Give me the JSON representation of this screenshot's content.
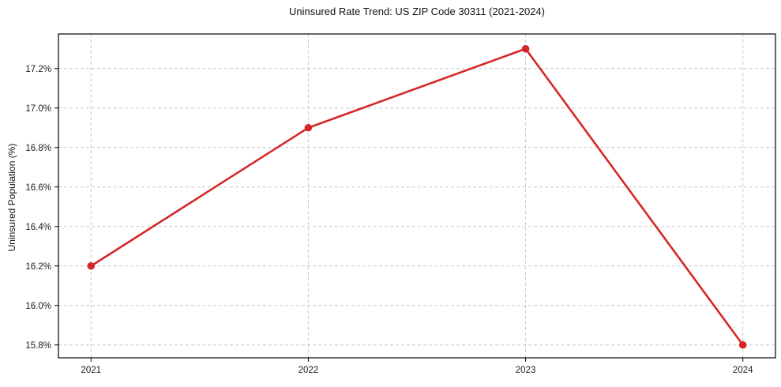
{
  "colors": {
    "line": "#d62728",
    "grid": "#c9c9c9",
    "spine": "#000000",
    "text": "#1c1c1c",
    "background": "#ffffff"
  },
  "chart_data": {
    "type": "line",
    "title": "Uninsured Rate Trend: US ZIP Code 30311 (2021-2024)",
    "xlabel": "",
    "ylabel": "Uninsured Population (%)",
    "x": [
      2021,
      2022,
      2023,
      2024
    ],
    "x_tick_labels": [
      "2021",
      "2022",
      "2023",
      "2024"
    ],
    "series": [
      {
        "name": "uninsured-rate",
        "values": [
          16.2,
          16.9,
          17.3,
          15.8
        ],
        "color": "#d62728",
        "marker": "circle"
      }
    ],
    "y_ticks": [
      15.8,
      16.0,
      16.2,
      16.4,
      16.6,
      16.8,
      17.0,
      17.2
    ],
    "y_tick_labels": [
      "15.8%",
      "16.0%",
      "16.2%",
      "16.4%",
      "16.6%",
      "16.8%",
      "17.0%",
      "17.2%"
    ],
    "xlim": [
      2020.85,
      2024.15
    ],
    "ylim": [
      15.735,
      17.375
    ],
    "grid": true,
    "grid_style": "dashed",
    "legend": "none"
  }
}
